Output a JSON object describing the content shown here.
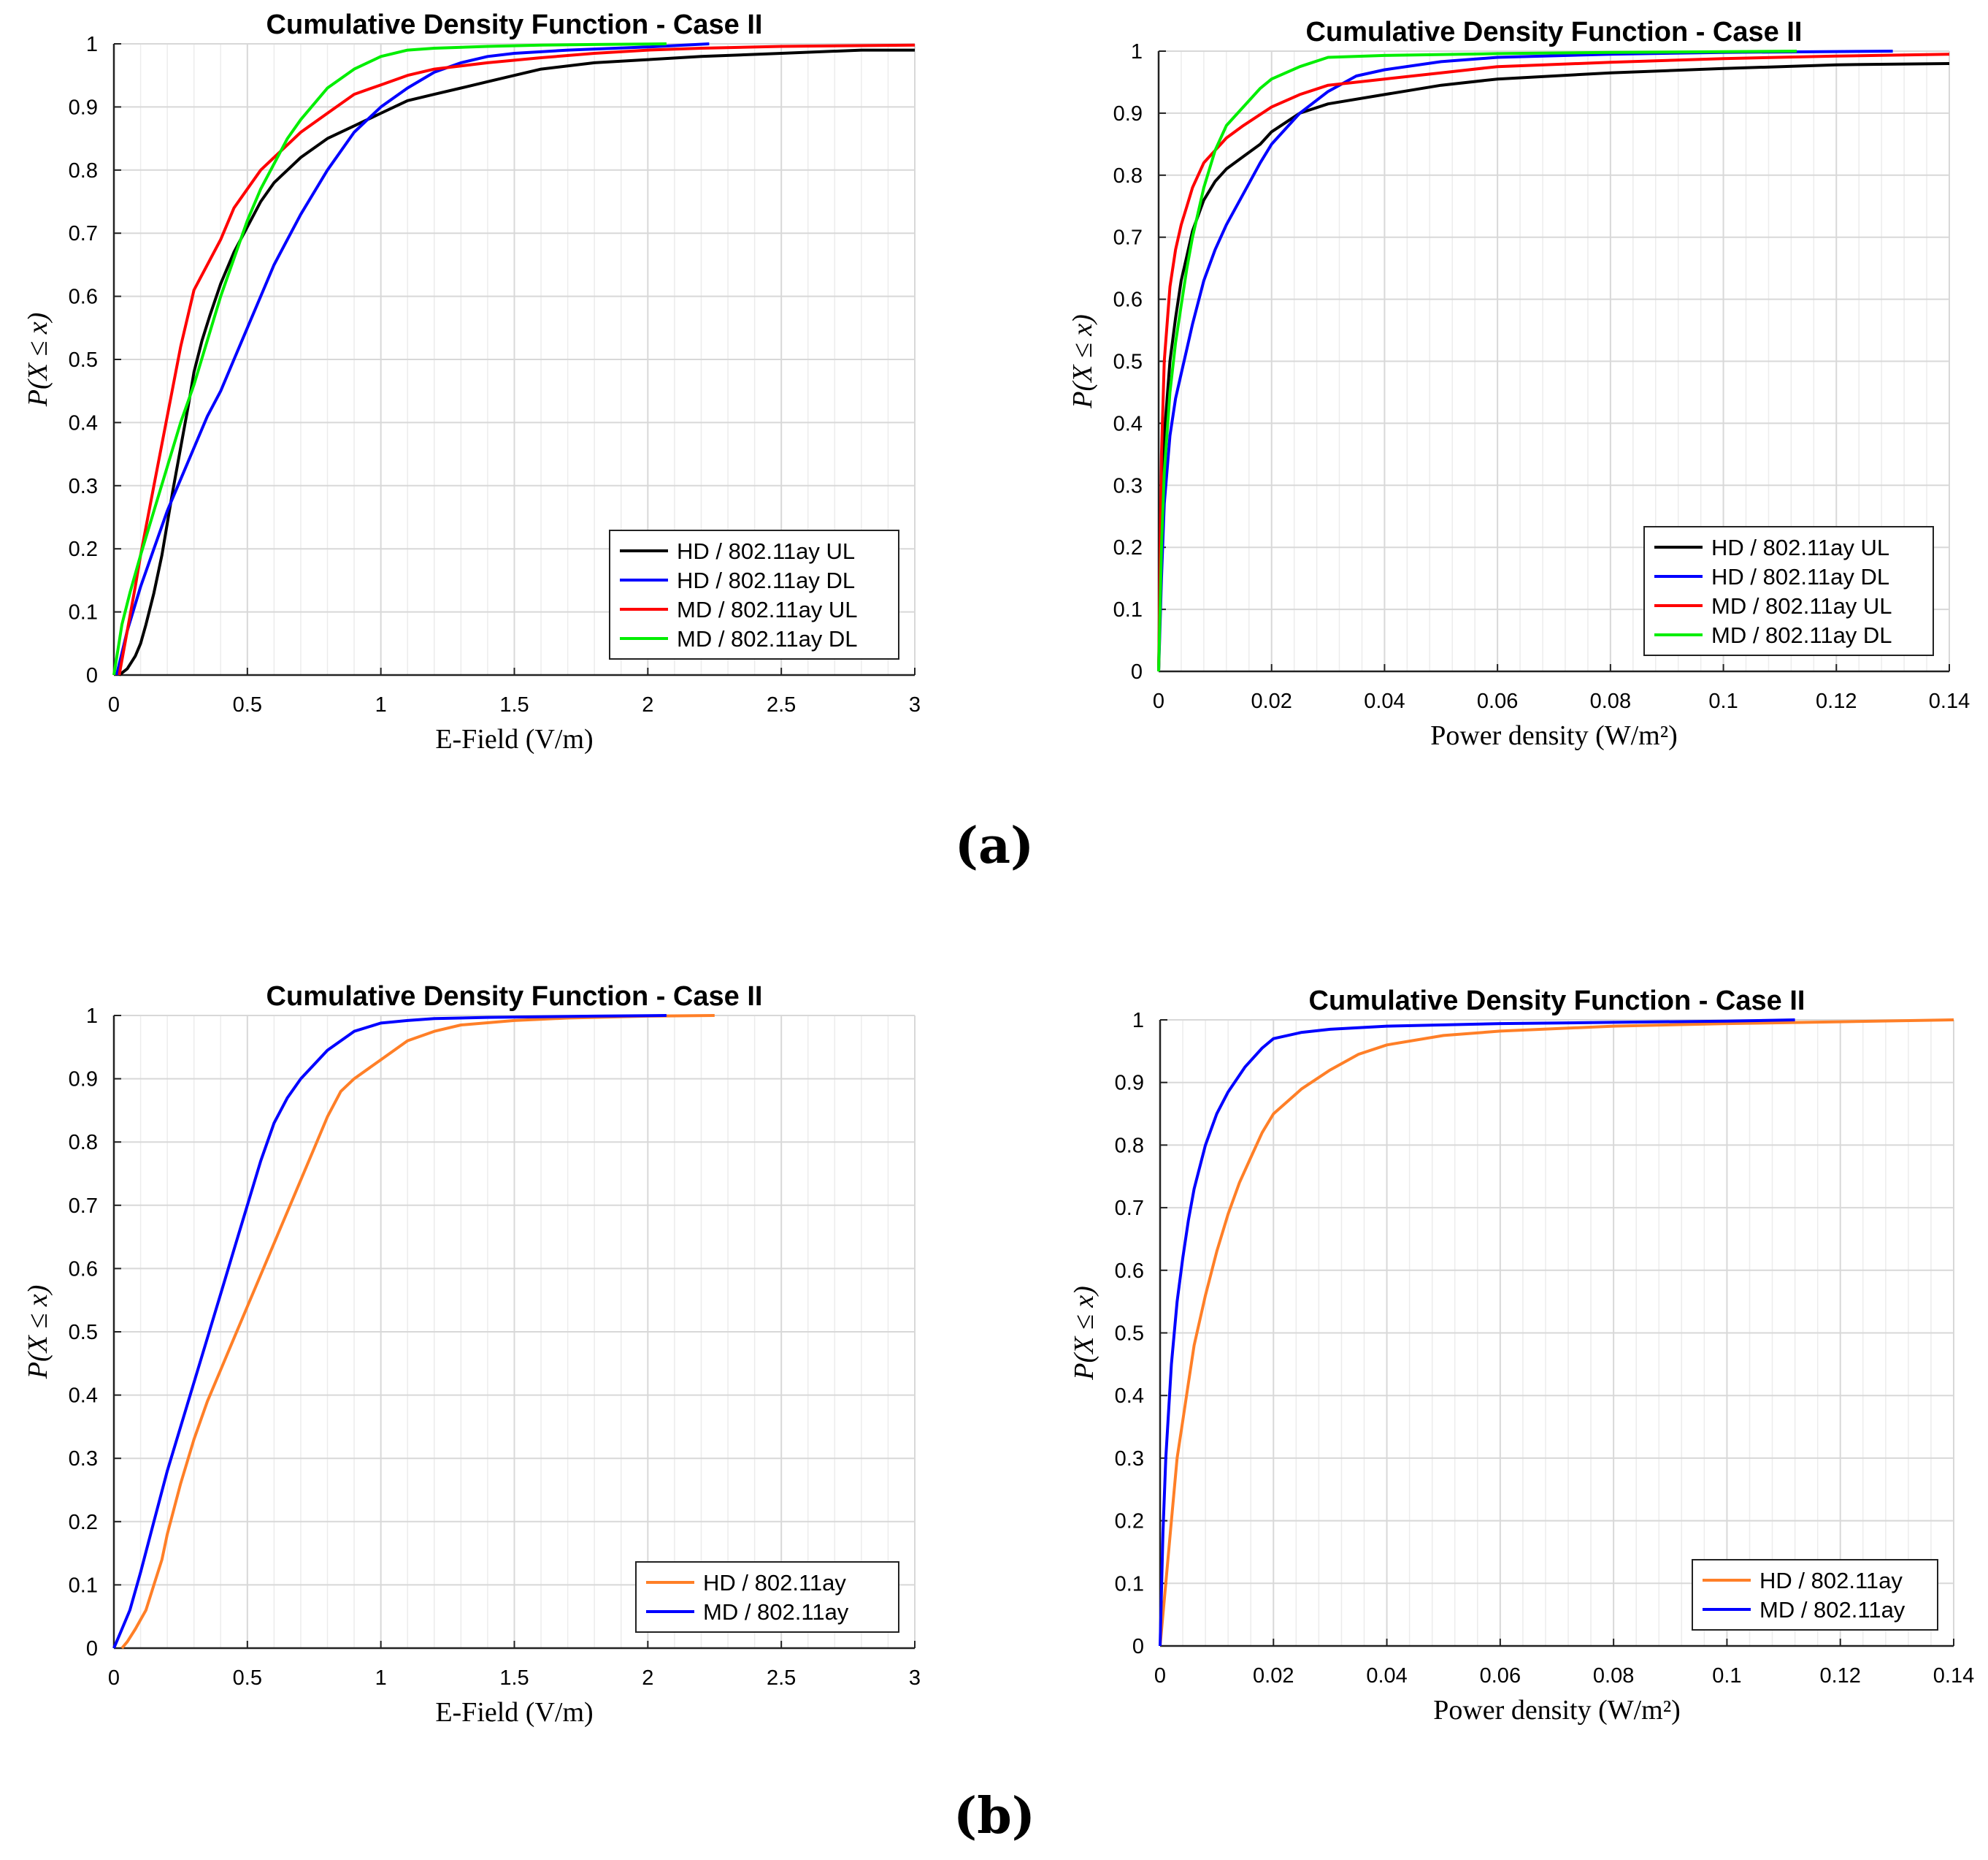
{
  "panel_labels": [
    "(a)",
    "(b)"
  ],
  "chart_data": [
    {
      "type": "line",
      "title": "Cumulative Density Function - Case II",
      "xlabel": "E-Field (V/m)",
      "ylabel": "P(X ≤ x)",
      "xlim": [
        0,
        3
      ],
      "ylim": [
        0,
        1
      ],
      "xticks": [
        "0",
        "0.5",
        "1",
        "1.5",
        "2",
        "2.5",
        "3"
      ],
      "yticks": [
        "0",
        "0.1",
        "0.2",
        "0.3",
        "0.4",
        "0.5",
        "0.6",
        "0.7",
        "0.8",
        "0.9",
        "1"
      ],
      "grid": true,
      "legend_position": "bottom-right",
      "series": [
        {
          "name": "HD / 802.11ay UL",
          "color": "#000000",
          "x": [
            0.02,
            0.05,
            0.08,
            0.1,
            0.12,
            0.15,
            0.18,
            0.2,
            0.22,
            0.25,
            0.28,
            0.3,
            0.33,
            0.36,
            0.4,
            0.45,
            0.5,
            0.55,
            0.6,
            0.65,
            0.7,
            0.8,
            0.9,
            1.0,
            1.1,
            1.2,
            1.3,
            1.4,
            1.5,
            1.6,
            1.8,
            2.0,
            2.2,
            2.5,
            2.8,
            3.0
          ],
          "y": [
            0.0,
            0.01,
            0.03,
            0.05,
            0.08,
            0.13,
            0.19,
            0.24,
            0.29,
            0.36,
            0.43,
            0.48,
            0.53,
            0.57,
            0.62,
            0.67,
            0.71,
            0.75,
            0.78,
            0.8,
            0.82,
            0.85,
            0.87,
            0.89,
            0.91,
            0.92,
            0.93,
            0.94,
            0.95,
            0.96,
            0.97,
            0.975,
            0.98,
            0.985,
            0.99,
            0.99
          ]
        },
        {
          "name": "HD / 802.11ay DL",
          "color": "#0000ff",
          "x": [
            0.01,
            0.05,
            0.1,
            0.15,
            0.2,
            0.25,
            0.3,
            0.35,
            0.4,
            0.45,
            0.5,
            0.55,
            0.6,
            0.65,
            0.7,
            0.8,
            0.9,
            1.0,
            1.1,
            1.2,
            1.3,
            1.4,
            1.5,
            1.7,
            2.0,
            2.23
          ],
          "y": [
            0.0,
            0.07,
            0.14,
            0.2,
            0.26,
            0.31,
            0.36,
            0.41,
            0.45,
            0.5,
            0.55,
            0.6,
            0.65,
            0.69,
            0.73,
            0.8,
            0.86,
            0.9,
            0.93,
            0.955,
            0.97,
            0.98,
            0.985,
            0.99,
            0.995,
            1.0
          ]
        },
        {
          "name": "MD / 802.11ay UL",
          "color": "#ff0000",
          "x": [
            0.02,
            0.05,
            0.08,
            0.1,
            0.15,
            0.2,
            0.25,
            0.3,
            0.35,
            0.4,
            0.45,
            0.5,
            0.55,
            0.6,
            0.7,
            0.8,
            0.9,
            1.0,
            1.1,
            1.2,
            1.4,
            1.6,
            1.8,
            2.0,
            2.2,
            2.5,
            3.0
          ],
          "y": [
            0.0,
            0.07,
            0.14,
            0.19,
            0.3,
            0.41,
            0.52,
            0.61,
            0.65,
            0.69,
            0.74,
            0.77,
            0.8,
            0.82,
            0.86,
            0.89,
            0.92,
            0.935,
            0.95,
            0.96,
            0.97,
            0.978,
            0.985,
            0.99,
            0.993,
            0.996,
            0.998
          ]
        },
        {
          "name": "MD / 802.11ay DL",
          "color": "#00ee00",
          "x": [
            0.0,
            0.03,
            0.06,
            0.1,
            0.15,
            0.2,
            0.25,
            0.3,
            0.35,
            0.4,
            0.45,
            0.5,
            0.55,
            0.6,
            0.65,
            0.7,
            0.8,
            0.9,
            1.0,
            1.1,
            1.2,
            1.4,
            1.6,
            1.8,
            2.07
          ],
          "y": [
            0.0,
            0.08,
            0.13,
            0.19,
            0.26,
            0.33,
            0.4,
            0.46,
            0.53,
            0.6,
            0.66,
            0.72,
            0.77,
            0.81,
            0.85,
            0.88,
            0.93,
            0.96,
            0.98,
            0.99,
            0.993,
            0.996,
            0.998,
            0.999,
            1.0
          ]
        }
      ]
    },
    {
      "type": "line",
      "title": "Cumulative Density Function - Case II",
      "xlabel": "Power density (W/m²)",
      "ylabel": "P(X ≤ x)",
      "xlim": [
        0,
        0.14
      ],
      "ylim": [
        0,
        1
      ],
      "xticks": [
        "0",
        "0.02",
        "0.04",
        "0.06",
        "0.08",
        "0.1",
        "0.12",
        "0.14"
      ],
      "yticks": [
        "0",
        "0.1",
        "0.2",
        "0.3",
        "0.4",
        "0.5",
        "0.6",
        "0.7",
        "0.8",
        "0.9",
        "1"
      ],
      "grid": true,
      "legend_position": "bottom-right",
      "series": [
        {
          "name": "HD / 802.11ay UL",
          "color": "#000000",
          "x": [
            0.0,
            0.0005,
            0.001,
            0.002,
            0.003,
            0.004,
            0.005,
            0.006,
            0.008,
            0.01,
            0.012,
            0.015,
            0.018,
            0.02,
            0.025,
            0.03,
            0.04,
            0.05,
            0.06,
            0.08,
            0.1,
            0.12,
            0.14
          ],
          "y": [
            0.0,
            0.25,
            0.38,
            0.5,
            0.57,
            0.63,
            0.67,
            0.71,
            0.76,
            0.79,
            0.81,
            0.83,
            0.85,
            0.87,
            0.9,
            0.915,
            0.93,
            0.945,
            0.955,
            0.965,
            0.972,
            0.978,
            0.98
          ]
        },
        {
          "name": "HD / 802.11ay DL",
          "color": "#0000ff",
          "x": [
            0.0,
            0.0005,
            0.001,
            0.002,
            0.003,
            0.004,
            0.005,
            0.006,
            0.008,
            0.01,
            0.012,
            0.015,
            0.018,
            0.02,
            0.025,
            0.03,
            0.035,
            0.04,
            0.05,
            0.06,
            0.08,
            0.1,
            0.13
          ],
          "y": [
            0.0,
            0.15,
            0.27,
            0.38,
            0.44,
            0.48,
            0.52,
            0.56,
            0.63,
            0.68,
            0.72,
            0.77,
            0.82,
            0.85,
            0.9,
            0.935,
            0.96,
            0.97,
            0.983,
            0.99,
            0.995,
            0.998,
            1.0
          ]
        },
        {
          "name": "MD / 802.11ay UL",
          "color": "#ff0000",
          "x": [
            0.0,
            0.0005,
            0.001,
            0.002,
            0.003,
            0.004,
            0.005,
            0.006,
            0.008,
            0.01,
            0.012,
            0.015,
            0.02,
            0.025,
            0.03,
            0.04,
            0.05,
            0.06,
            0.08,
            0.1,
            0.12,
            0.14
          ],
          "y": [
            0.0,
            0.35,
            0.5,
            0.62,
            0.68,
            0.72,
            0.75,
            0.78,
            0.82,
            0.84,
            0.86,
            0.88,
            0.91,
            0.93,
            0.945,
            0.955,
            0.965,
            0.975,
            0.982,
            0.988,
            0.992,
            0.995
          ]
        },
        {
          "name": "MD / 802.11ay DL",
          "color": "#00ee00",
          "x": [
            0.0,
            0.0005,
            0.001,
            0.002,
            0.003,
            0.004,
            0.005,
            0.006,
            0.008,
            0.01,
            0.012,
            0.015,
            0.018,
            0.02,
            0.025,
            0.03,
            0.04,
            0.06,
            0.08,
            0.1,
            0.113
          ],
          "y": [
            0.0,
            0.2,
            0.32,
            0.45,
            0.53,
            0.59,
            0.65,
            0.7,
            0.78,
            0.84,
            0.88,
            0.91,
            0.94,
            0.955,
            0.975,
            0.99,
            0.993,
            0.996,
            0.998,
            0.999,
            1.0
          ]
        }
      ]
    },
    {
      "type": "line",
      "title": "Cumulative Density Function - Case II",
      "xlabel": "E-Field (V/m)",
      "ylabel": "P(X ≤ x)",
      "xlim": [
        0,
        3
      ],
      "ylim": [
        0,
        1
      ],
      "xticks": [
        "0",
        "0.5",
        "1",
        "1.5",
        "2",
        "2.5",
        "3"
      ],
      "yticks": [
        "0",
        "0.1",
        "0.2",
        "0.3",
        "0.4",
        "0.5",
        "0.6",
        "0.7",
        "0.8",
        "0.9",
        "1"
      ],
      "grid": true,
      "legend_position": "bottom-right",
      "series": [
        {
          "name": "HD / 802.11ay",
          "color": "#ff7f27",
          "x": [
            0.03,
            0.05,
            0.08,
            0.12,
            0.15,
            0.18,
            0.2,
            0.25,
            0.3,
            0.35,
            0.4,
            0.45,
            0.5,
            0.55,
            0.6,
            0.65,
            0.7,
            0.75,
            0.8,
            0.85,
            0.9,
            1.0,
            1.1,
            1.2,
            1.3,
            1.5,
            1.7,
            2.0,
            2.25
          ],
          "y": [
            0.0,
            0.01,
            0.03,
            0.06,
            0.1,
            0.14,
            0.18,
            0.26,
            0.33,
            0.39,
            0.44,
            0.49,
            0.54,
            0.59,
            0.64,
            0.69,
            0.74,
            0.79,
            0.84,
            0.88,
            0.9,
            0.93,
            0.96,
            0.975,
            0.985,
            0.992,
            0.996,
            0.999,
            1.0
          ]
        },
        {
          "name": "MD / 802.11ay",
          "color": "#0000ff",
          "x": [
            0.0,
            0.03,
            0.06,
            0.1,
            0.15,
            0.2,
            0.25,
            0.3,
            0.35,
            0.4,
            0.45,
            0.5,
            0.55,
            0.6,
            0.65,
            0.7,
            0.8,
            0.9,
            1.0,
            1.1,
            1.2,
            1.4,
            1.6,
            1.8,
            2.07
          ],
          "y": [
            0.0,
            0.03,
            0.06,
            0.12,
            0.2,
            0.28,
            0.35,
            0.42,
            0.49,
            0.56,
            0.63,
            0.7,
            0.77,
            0.83,
            0.87,
            0.9,
            0.945,
            0.975,
            0.988,
            0.992,
            0.995,
            0.997,
            0.998,
            0.999,
            1.0
          ]
        }
      ]
    },
    {
      "type": "line",
      "title": "Cumulative Density Function - Case II",
      "xlabel": "Power density (W/m²)",
      "ylabel": "P(X ≤ x)",
      "xlim": [
        0,
        0.14
      ],
      "ylim": [
        0,
        1
      ],
      "xticks": [
        "0",
        "0.02",
        "0.04",
        "0.06",
        "0.08",
        "0.1",
        "0.12",
        "0.14"
      ],
      "yticks": [
        "0",
        "0.1",
        "0.2",
        "0.3",
        "0.4",
        "0.5",
        "0.6",
        "0.7",
        "0.8",
        "0.9",
        "1"
      ],
      "grid": true,
      "legend_position": "bottom-right",
      "series": [
        {
          "name": "HD / 802.11ay",
          "color": "#ff7f27",
          "x": [
            0.0,
            0.001,
            0.002,
            0.003,
            0.004,
            0.005,
            0.006,
            0.008,
            0.01,
            0.012,
            0.014,
            0.016,
            0.018,
            0.02,
            0.025,
            0.03,
            0.035,
            0.04,
            0.05,
            0.06,
            0.08,
            0.1,
            0.12,
            0.14
          ],
          "y": [
            0.0,
            0.1,
            0.2,
            0.3,
            0.36,
            0.42,
            0.48,
            0.56,
            0.63,
            0.69,
            0.74,
            0.78,
            0.82,
            0.85,
            0.89,
            0.92,
            0.945,
            0.96,
            0.975,
            0.982,
            0.99,
            0.994,
            0.997,
            1.0
          ]
        },
        {
          "name": "MD / 802.11ay",
          "color": "#0000ff",
          "x": [
            0.0,
            0.0005,
            0.001,
            0.002,
            0.003,
            0.004,
            0.005,
            0.006,
            0.008,
            0.01,
            0.012,
            0.015,
            0.018,
            0.02,
            0.025,
            0.03,
            0.04,
            0.06,
            0.08,
            0.1,
            0.112
          ],
          "y": [
            0.0,
            0.18,
            0.3,
            0.45,
            0.55,
            0.62,
            0.68,
            0.73,
            0.8,
            0.85,
            0.885,
            0.925,
            0.955,
            0.97,
            0.98,
            0.985,
            0.99,
            0.994,
            0.996,
            0.998,
            1.0
          ]
        }
      ]
    }
  ]
}
